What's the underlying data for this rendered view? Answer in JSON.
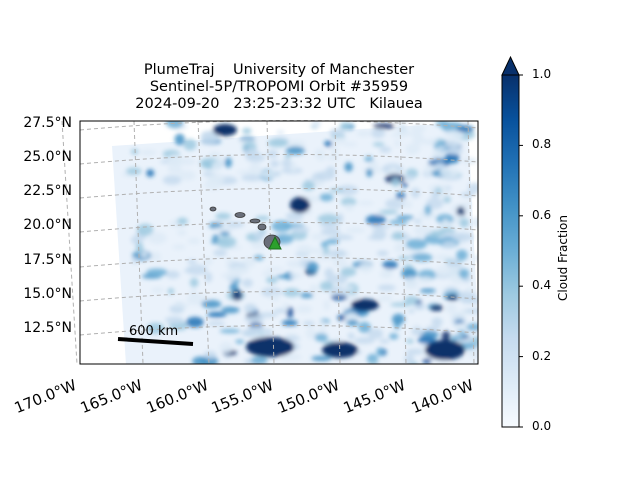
{
  "title": {
    "line1": "PlumeTraj    University of Manchester",
    "line2": "Sentinel-5P/TROPOMI Orbit #35959",
    "line3": "2024-09-20   23:25-23:32 UTC   Kilauea"
  },
  "chart_data": {
    "type": "heatmap",
    "title": "PlumeTraj    University of Manchester / Sentinel-5P/TROPOMI Orbit #35959 / 2024-09-20   23:25-23:32 UTC   Kilauea",
    "lat_ticks": [
      "27.5°N",
      "25.0°N",
      "22.5°N",
      "20.0°N",
      "17.5°N",
      "15.0°N",
      "12.5°N"
    ],
    "lon_ticks": [
      "170.0°W",
      "165.0°W",
      "160.0°W",
      "155.0°W",
      "150.0°W",
      "145.0°W",
      "140.0°W"
    ],
    "lat_values": [
      27.5,
      25.0,
      22.5,
      20.0,
      17.5,
      15.0,
      12.5
    ],
    "lon_values": [
      -170,
      -165,
      -160,
      -155,
      -150,
      -145,
      -140
    ],
    "grid": true,
    "colorbar": {
      "label": "Cloud Fraction",
      "ticks": [
        "0.0",
        "0.2",
        "0.4",
        "0.6",
        "0.8",
        "1.0"
      ],
      "range": [
        0,
        1
      ],
      "extend": "max",
      "colormap": "Blues"
    },
    "scale_bar": "600 km",
    "volcano": "Kilauea",
    "marker_color": "#2ca02c"
  }
}
